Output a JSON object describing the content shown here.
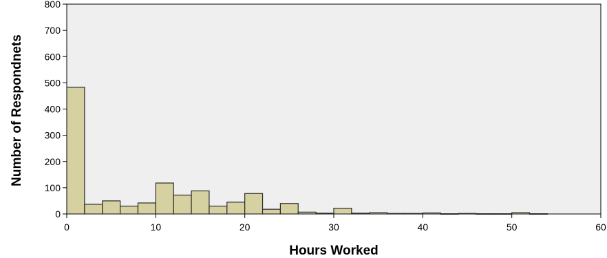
{
  "chart_data": {
    "type": "bar",
    "subtype": "histogram",
    "xlabel": "Hours Worked",
    "ylabel": "Number of Respondnets",
    "xlim": [
      0,
      60
    ],
    "ylim": [
      0,
      800
    ],
    "xticks": [
      "0",
      "10",
      "20",
      "30",
      "40",
      "50",
      "60"
    ],
    "yticks": [
      "0",
      "100",
      "200",
      "300",
      "400",
      "500",
      "600",
      "700",
      "800"
    ],
    "grid": false,
    "bin_width": 2,
    "bins": [
      {
        "start": 0,
        "value": 483
      },
      {
        "start": 2,
        "value": 37
      },
      {
        "start": 4,
        "value": 50
      },
      {
        "start": 6,
        "value": 30
      },
      {
        "start": 8,
        "value": 42
      },
      {
        "start": 10,
        "value": 118
      },
      {
        "start": 12,
        "value": 72
      },
      {
        "start": 14,
        "value": 88
      },
      {
        "start": 16,
        "value": 30
      },
      {
        "start": 18,
        "value": 45
      },
      {
        "start": 20,
        "value": 78
      },
      {
        "start": 22,
        "value": 18
      },
      {
        "start": 24,
        "value": 40
      },
      {
        "start": 26,
        "value": 7
      },
      {
        "start": 28,
        "value": 3
      },
      {
        "start": 30,
        "value": 22
      },
      {
        "start": 32,
        "value": 3
      },
      {
        "start": 34,
        "value": 5
      },
      {
        "start": 36,
        "value": 2
      },
      {
        "start": 38,
        "value": 2
      },
      {
        "start": 40,
        "value": 4
      },
      {
        "start": 42,
        "value": 1
      },
      {
        "start": 44,
        "value": 2
      },
      {
        "start": 46,
        "value": 1
      },
      {
        "start": 48,
        "value": 1
      },
      {
        "start": 50,
        "value": 5
      },
      {
        "start": 52,
        "value": 1
      }
    ],
    "colors": {
      "bar_fill": "#d5d1a0",
      "bar_stroke": "#2b2b2b",
      "plot_background": "#efefef"
    }
  }
}
